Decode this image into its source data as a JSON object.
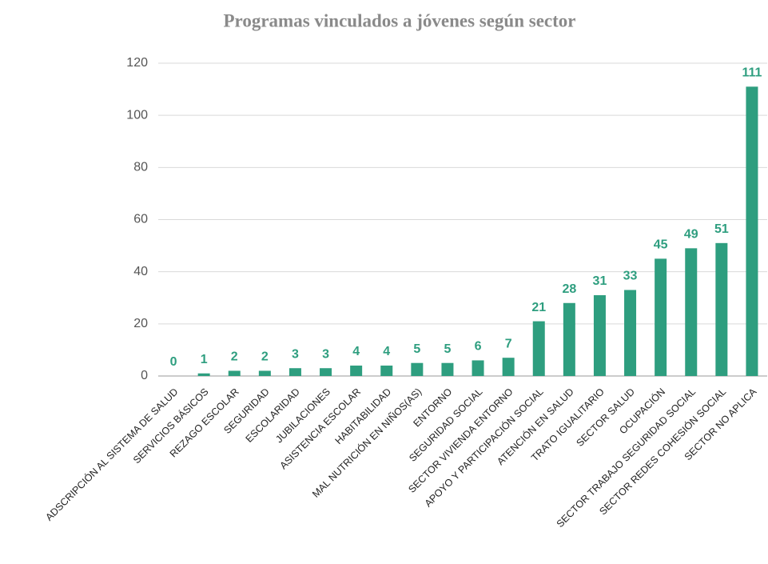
{
  "chart_data": {
    "type": "bar",
    "title": "Programas vinculados a jóvenes según sector",
    "categories": [
      "ADSCRIPCIÓN AL SISTEMA DE SALUD",
      "SERVICIOS BÁSICOS",
      "REZAGO ESCOLAR",
      "SEGURIDAD",
      "ESCOLARIDAD",
      "JUBILACIONES",
      "ASISTENCIA ESCOLAR",
      "HABITABILIDAD",
      "MAL NUTRICIÓN EN NIÑOS(AS)",
      "ENTORNO",
      "SEGURIDAD SOCIAL",
      "SECTOR VIVIENDA ENTORNO",
      "APOYO Y PARTICIPACIÓN SOCIAL",
      "ATENCIÓN EN SALUD",
      "TRATO IGUALITARIO",
      "SECTOR SALUD",
      "OCUPACIÓN",
      "SECTOR TRABAJO SEGURIDAD SOCIAL",
      "SECTOR REDES COHESIÓN SOCIAL",
      "SECTOR NO APLICA"
    ],
    "values": [
      0,
      1,
      2,
      2,
      3,
      3,
      4,
      4,
      5,
      5,
      6,
      7,
      21,
      28,
      31,
      33,
      45,
      49,
      51,
      111
    ],
    "color": "#2e9e7f",
    "ylim": [
      0,
      120
    ],
    "yticks": [
      0,
      20,
      40,
      60,
      80,
      100,
      120
    ],
    "grid": true
  }
}
